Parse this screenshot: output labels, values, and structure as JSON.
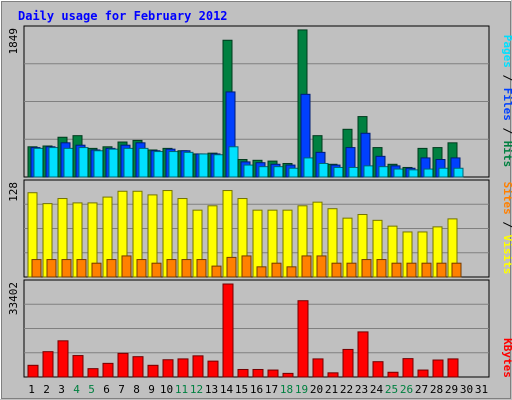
{
  "chart_data": {
    "type": "bar",
    "title": "Daily usage for February 2012",
    "x": [
      "1",
      "2",
      "3",
      "4",
      "5",
      "6",
      "7",
      "8",
      "9",
      "10",
      "11",
      "12",
      "13",
      "14",
      "15",
      "16",
      "17",
      "18",
      "19",
      "20",
      "21",
      "22",
      "23",
      "24",
      "25",
      "26",
      "27",
      "28",
      "29",
      "30",
      "31"
    ],
    "weekend_days": [
      "4",
      "5",
      "11",
      "12",
      "18",
      "19",
      "25",
      "26"
    ],
    "panels": [
      {
        "name": "hits_files_pages",
        "ymax_label": "1849",
        "ymax": 1849,
        "series": [
          {
            "name": "Hits",
            "color": "#008040",
            "values": [
              380,
              390,
              500,
              520,
              360,
              380,
              440,
              460,
              340,
              360,
              330,
              290,
              300,
              1720,
              220,
              210,
              200,
              170,
              1850,
              520,
              160,
              600,
              760,
              370,
              160,
              120,
              360,
              370,
              430,
              0,
              0
            ]
          },
          {
            "name": "Files",
            "color": "#0040ff",
            "values": [
              370,
              380,
              430,
              400,
              340,
              360,
              400,
              430,
              330,
              350,
              330,
              290,
              290,
              1070,
              190,
              180,
              160,
              150,
              1040,
              310,
              150,
              370,
              550,
              260,
              140,
              110,
              240,
              220,
              240,
              0,
              0
            ]
          },
          {
            "name": "Pages",
            "color": "#00e0ff",
            "values": [
              360,
              370,
              360,
              370,
              330,
              350,
              360,
              360,
              320,
              320,
              310,
              290,
              280,
              380,
              150,
              130,
              130,
              110,
              240,
              170,
              120,
              120,
              140,
              130,
              100,
              90,
              100,
              110,
              110,
              0,
              0
            ]
          }
        ]
      },
      {
        "name": "visits_sites",
        "ymax_label": "128",
        "ymax": 128,
        "series": [
          {
            "name": "Visits",
            "color": "#ffff00",
            "values": [
              116,
              101,
              108,
              102,
              102,
              110,
              118,
              118,
              113,
              119,
              108,
              92,
              98,
              119,
              108,
              92,
              92,
              92,
              98,
              103,
              94,
              81,
              86,
              78,
              70,
              62,
              62,
              69,
              80,
              0,
              0
            ]
          },
          {
            "name": "Sites",
            "color": "#ff8000",
            "values": [
              24,
              24,
              24,
              24,
              19,
              24,
              29,
              24,
              19,
              24,
              24,
              24,
              15,
              27,
              29,
              14,
              19,
              14,
              29,
              29,
              19,
              19,
              24,
              24,
              19,
              19,
              19,
              19,
              19,
              0,
              0
            ]
          }
        ]
      },
      {
        "name": "kbytes",
        "ymax_label": "33402",
        "ymax": 33402,
        "series": [
          {
            "name": "KBytes",
            "color": "#ff0000",
            "values": [
              4200,
              9100,
              13000,
              7700,
              3000,
              4900,
              8500,
              7300,
              4200,
              6200,
              6500,
              7600,
              5700,
              33402,
              2700,
              2700,
              2500,
              1300,
              27400,
              6500,
              1500,
              9900,
              16200,
              5500,
              1700,
              6600,
              2500,
              6100,
              6500,
              0,
              0
            ]
          }
        ]
      }
    ],
    "axis_labels": {
      "panel1": [
        "Pages",
        "Files",
        "Hits"
      ],
      "panel2": [
        "Sites",
        "Visits"
      ],
      "panel3": [
        "KBytes"
      ]
    }
  },
  "colors": {
    "background": "#c0c0c0",
    "plot_bg": "#c0c0c0",
    "grid": "#808080",
    "title": "#0000ff",
    "weekday_label": "#000000",
    "weekend_label": "#008040",
    "label_sep": "#000000"
  }
}
